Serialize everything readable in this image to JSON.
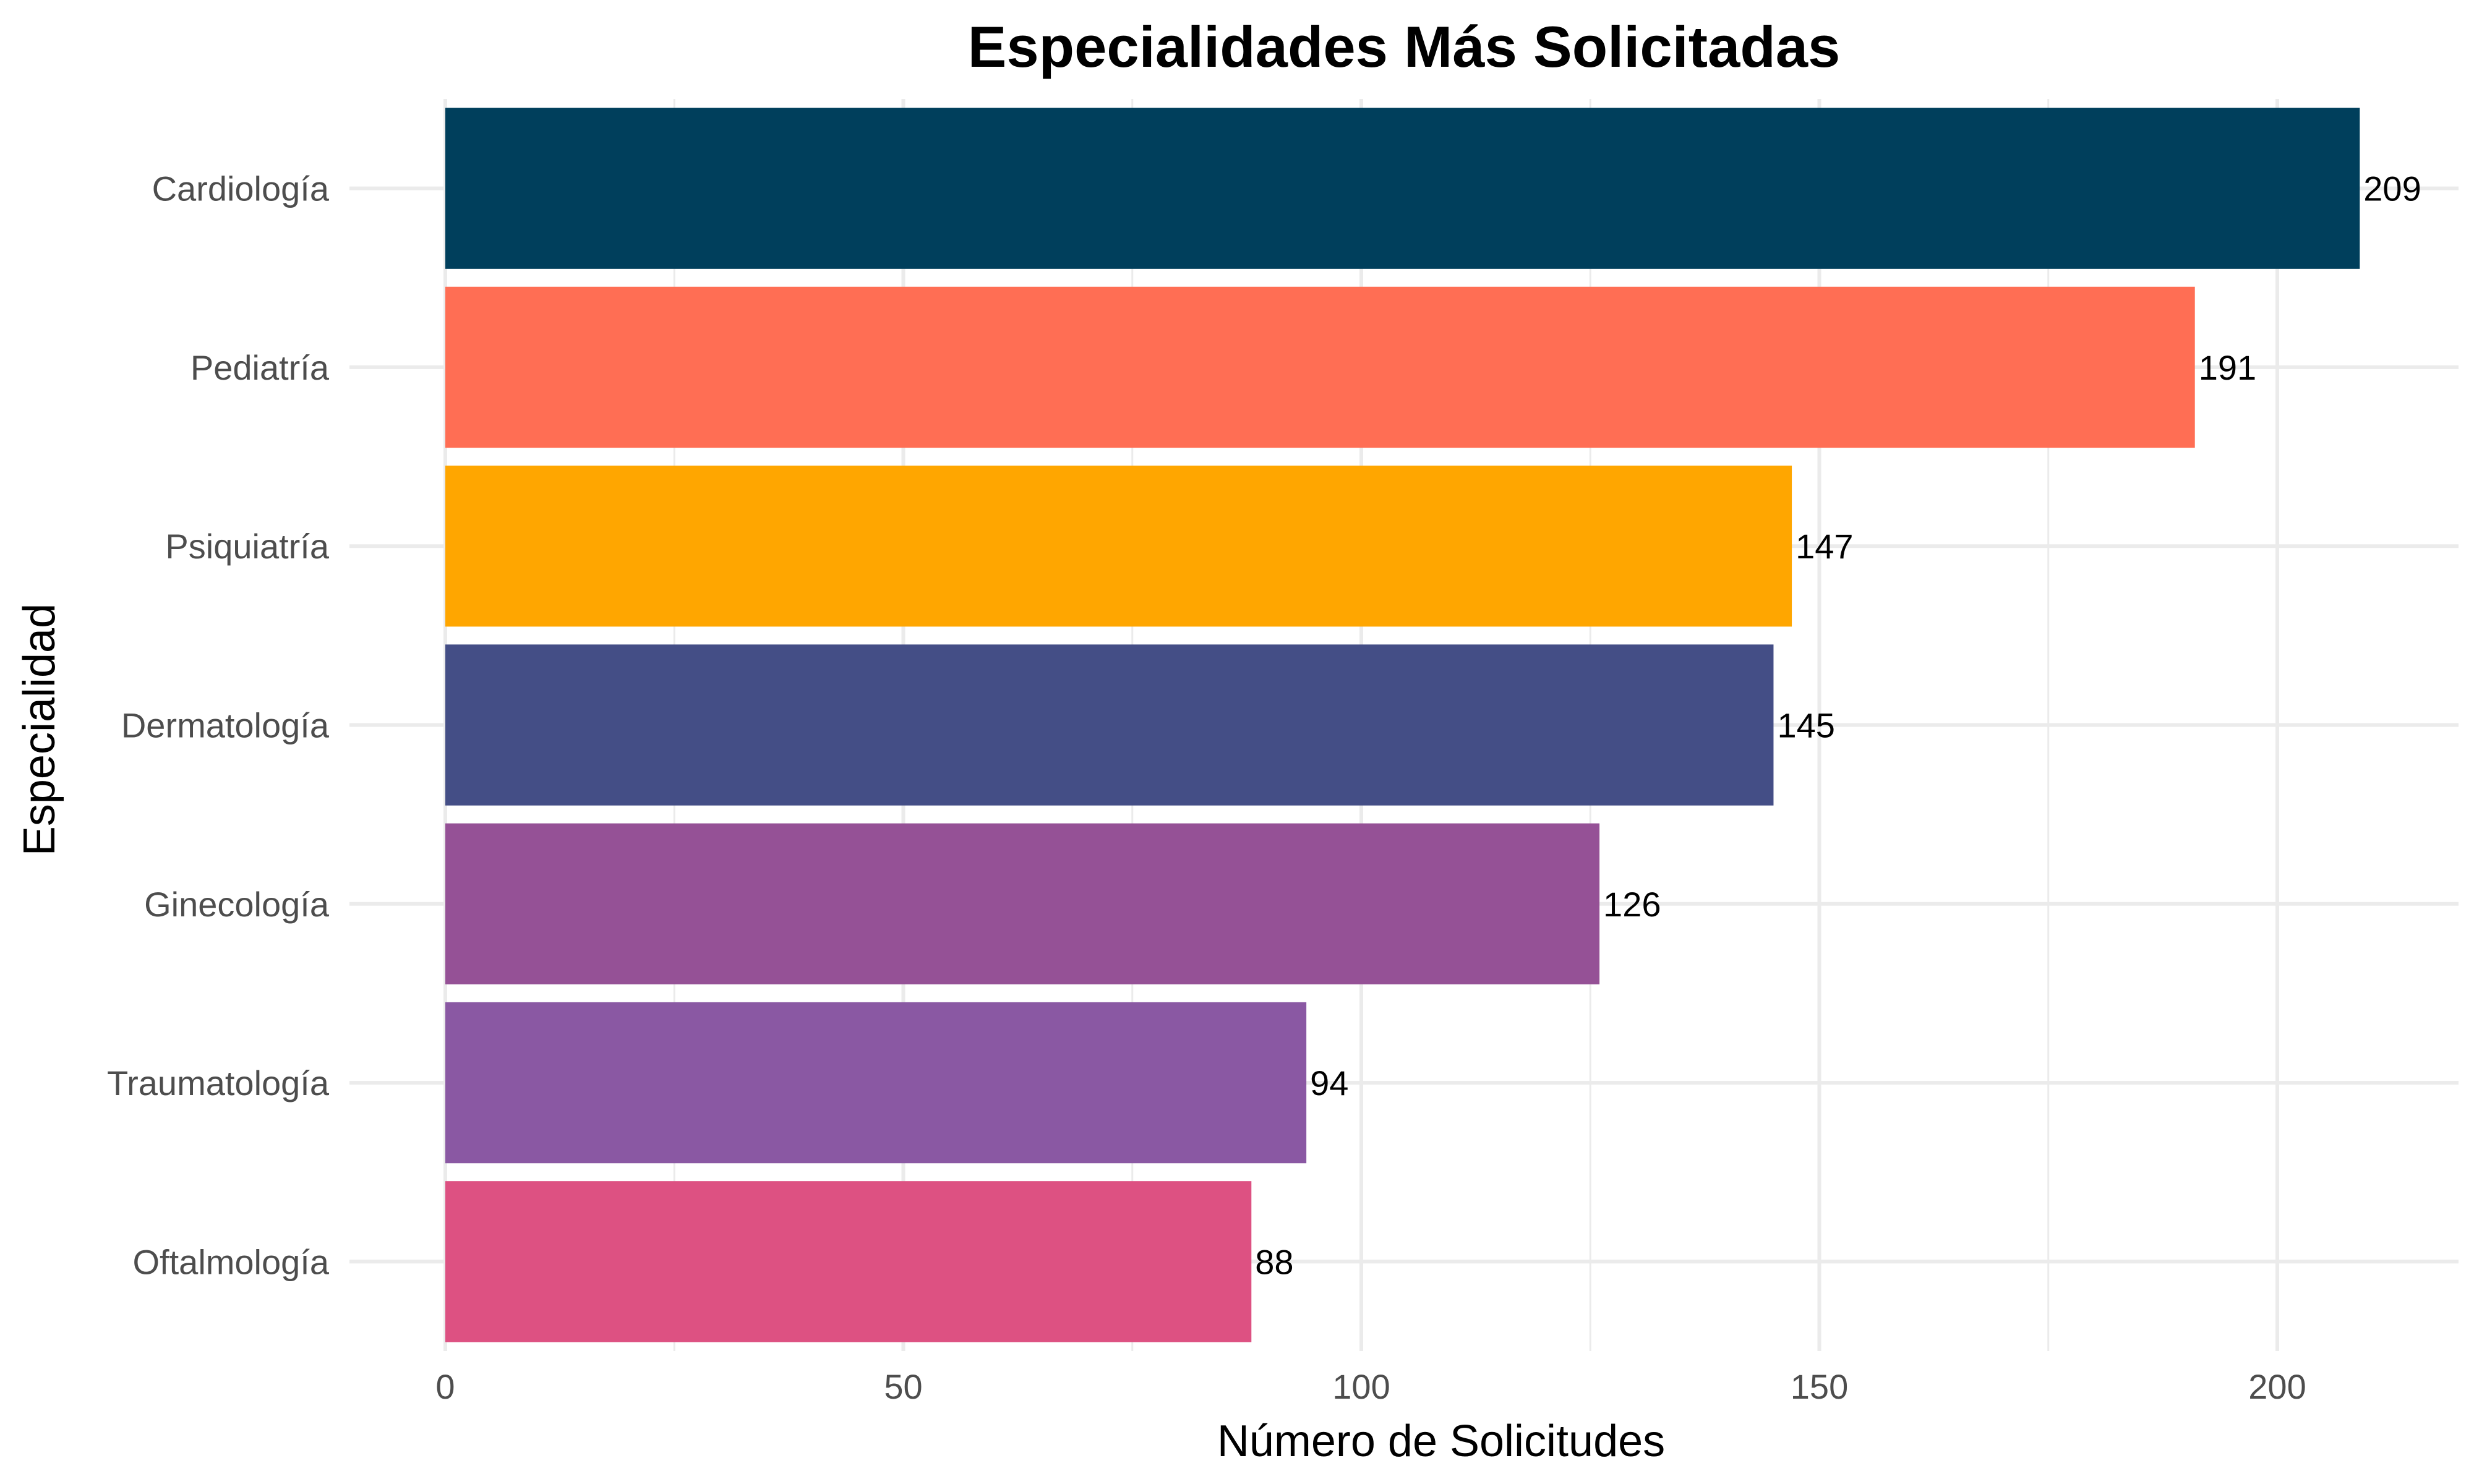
{
  "chart_data": {
    "type": "bar",
    "orientation": "horizontal",
    "title": "Especialidades Más Solicitadas",
    "xlabel": "Número de Solicitudes",
    "ylabel": "Especialidad",
    "categories": [
      "Cardiología",
      "Pediatría",
      "Psiquiatría",
      "Dermatología",
      "Ginecología",
      "Traumatología",
      "Oftalmología"
    ],
    "values": [
      209,
      191,
      147,
      145,
      126,
      94,
      88
    ],
    "data_labels": [
      "209",
      "191",
      "147",
      "145",
      "126",
      "94",
      "88"
    ],
    "colors": [
      "#003f5c",
      "#ff6e54",
      "#ffa600",
      "#444e86",
      "#955196",
      "#8a58a3",
      "#dd5182"
    ],
    "xlim": [
      0,
      219
    ],
    "x_ticks": [
      0,
      50,
      100,
      150,
      200
    ],
    "x_tick_labels": [
      "0",
      "50",
      "100",
      "150",
      "200"
    ],
    "grid": true,
    "legend": "none"
  }
}
